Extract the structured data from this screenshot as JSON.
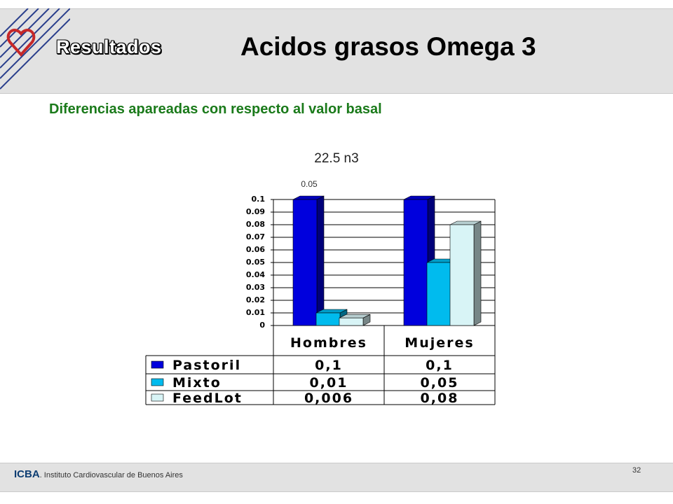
{
  "header": {
    "section_title": "Resultados",
    "main_title": "Acidos grasos  Omega 3",
    "subtitle": "Diferencias apareadas con respecto al valor basal"
  },
  "chart_heading": "22.5 n3",
  "chart_note": "0.05",
  "footer": {
    "org_abbr": "ICBA",
    "org_name": ". Instituto Cardiovascular de Buenos Aires",
    "page_number": "32"
  },
  "colors": {
    "pastoril": "#0000dd",
    "mixto": "#00bbee",
    "feedlot": "#d8f4f6",
    "subtitle": "#1a7a1a"
  },
  "chart_data": {
    "type": "bar",
    "categories": [
      "Hombres",
      "Mujeres"
    ],
    "series": [
      {
        "name": "Pastoril",
        "values": [
          0.1,
          0.1
        ],
        "labels": [
          "0,1",
          "0,1"
        ]
      },
      {
        "name": "Mixto",
        "values": [
          0.01,
          0.05
        ],
        "labels": [
          "0,01",
          "0,05"
        ]
      },
      {
        "name": "FeedLot",
        "values": [
          0.006,
          0.08
        ],
        "labels": [
          "0,006",
          "0,08"
        ]
      }
    ],
    "ylim": [
      0,
      0.1
    ],
    "yticks": [
      "0",
      "0,01",
      "0,02",
      "0,03",
      "0,04",
      "0,05",
      "0,06",
      "0,07",
      "0,08",
      "0,09",
      "0,1"
    ],
    "grid": true,
    "data_table": true,
    "style": "3d"
  }
}
